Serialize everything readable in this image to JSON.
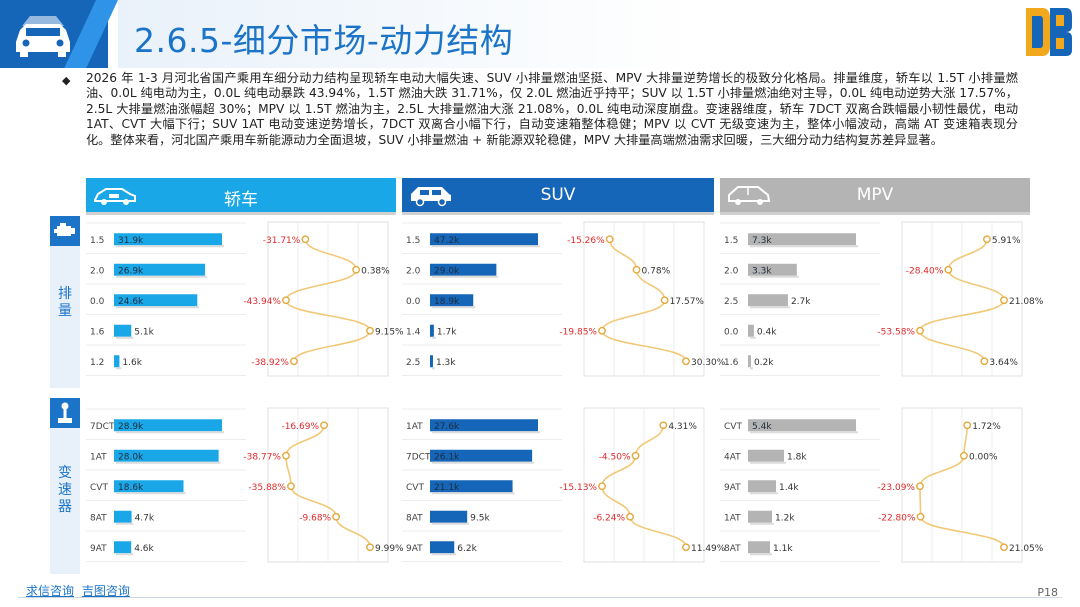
{
  "page": {
    "title": "2.6.5-细分市场-动力结构",
    "bullet": "◆",
    "summary": "2026 年 1-3 月河北省国产乘用车细分动力结构呈现轿车电动大幅失速、SUV 小排量燃油坚挺、MPV 大排量逆势增长的极致分化格局。排量维度，轿车以 1.5T 小排量燃油、0.0L 纯电动为主，0.0L 纯电动暴跌 43.94%，1.5T 燃油大跌 31.71%，仅 2.0L 燃油近乎持平；SUV 以 1.5T 小排量燃油绝对主导，0.0L 纯电动逆势大涨 17.57%，2.5L 大排量燃油涨幅超 30%；MPV 以 1.5T 燃油为主，2.5L 大排量燃油大涨 21.08%，0.0L 纯电动深度崩盘。变速器维度，轿车 7DCT 双离合跌幅最小韧性最优，电动 1AT、CVT 大幅下行；SUV 1AT 电动变速逆势增长，7DCT 双离合小幅下行，自动变速箱整体稳健；MPV 以 CVT 无级变速为主，整体小幅波动，高端 AT 变速箱表现分化。整体来看，河北国产乘用车新能源动力全面退坡，SUV 小排量燃油 + 新能源双轮稳健，MPV 大排量高端燃油需求回暖，三大细分动力结构复苏差异显著。",
    "side_labels": {
      "displacement": "排\n量",
      "transmission": "变\n速\n器"
    },
    "footer_links": [
      "求信咨询",
      "吉图咨询"
    ],
    "page_number": "P18"
  },
  "colors": {
    "sedan": "#1aa7e8",
    "suv": "#1565b8",
    "mpv": "#b4b4b4",
    "line": "#f2c878",
    "negative": "#e0292b",
    "accent": "#1b74c8"
  },
  "chart_data": [
    {
      "type": "bar",
      "segment": "轿车",
      "dimension": "排量",
      "categories": [
        "1.5",
        "2.0",
        "0.0",
        "1.6",
        "1.2"
      ],
      "labels": [
        "31.9k",
        "26.9k",
        "24.6k",
        "5.1k",
        "1.6k"
      ],
      "values": [
        31.9,
        26.9,
        24.6,
        5.1,
        1.6
      ],
      "growth": [
        -31.71,
        0.38,
        -43.94,
        9.15,
        -38.92
      ],
      "growth_labels": [
        "-31.71%",
        "0.38%",
        "-43.94%",
        "9.15%",
        "-38.92%"
      ]
    },
    {
      "type": "bar",
      "segment": "SUV",
      "dimension": "排量",
      "categories": [
        "1.5",
        "2.0",
        "0.0",
        "1.4",
        "2.5"
      ],
      "labels": [
        "47.2k",
        "29.0k",
        "18.9k",
        "1.7k",
        "1.3k"
      ],
      "values": [
        47.2,
        29.0,
        18.9,
        1.7,
        1.3
      ],
      "growth": [
        -15.26,
        0.78,
        17.57,
        -19.85,
        30.3
      ],
      "growth_labels": [
        "-15.26%",
        "0.78%",
        "17.57%",
        "-19.85%",
        "30.30%"
      ]
    },
    {
      "type": "bar",
      "segment": "MPV",
      "dimension": "排量",
      "categories": [
        "1.5",
        "2.0",
        "2.5",
        "0.0",
        "1.6"
      ],
      "labels": [
        "7.3k",
        "3.3k",
        "2.7k",
        "0.4k",
        "0.2k"
      ],
      "values": [
        7.3,
        3.3,
        2.7,
        0.4,
        0.2
      ],
      "growth": [
        5.91,
        -28.4,
        21.08,
        -53.58,
        3.64
      ],
      "growth_labels": [
        "5.91%",
        "-28.40%",
        "21.08%",
        "-53.58%",
        "3.64%"
      ]
    },
    {
      "type": "bar",
      "segment": "轿车",
      "dimension": "变速器",
      "categories": [
        "7DCT",
        "1AT",
        "CVT",
        "8AT",
        "9AT"
      ],
      "labels": [
        "28.9k",
        "28.0k",
        "18.6k",
        "4.7k",
        "4.6k"
      ],
      "values": [
        28.9,
        28.0,
        18.6,
        4.7,
        4.6
      ],
      "growth": [
        -16.69,
        -38.77,
        -35.88,
        -9.68,
        9.99
      ],
      "growth_labels": [
        "-16.69%",
        "-38.77%",
        "-35.88%",
        "-9.68%",
        "9.99%"
      ]
    },
    {
      "type": "bar",
      "segment": "SUV",
      "dimension": "变速器",
      "categories": [
        "1AT",
        "7DCT",
        "CVT",
        "8AT",
        "9AT"
      ],
      "labels": [
        "27.6k",
        "26.1k",
        "21.1k",
        "9.5k",
        "6.2k"
      ],
      "values": [
        27.6,
        26.1,
        21.1,
        9.5,
        6.2
      ],
      "growth": [
        4.31,
        -4.5,
        -15.13,
        -6.24,
        11.49
      ],
      "growth_labels": [
        "4.31%",
        "-4.50%",
        "-15.13%",
        "-6.24%",
        "11.49%"
      ]
    },
    {
      "type": "bar",
      "segment": "MPV",
      "dimension": "变速器",
      "categories": [
        "CVT",
        "4AT",
        "9AT",
        "1AT",
        "8AT"
      ],
      "labels": [
        "5.4k",
        "1.8k",
        "1.4k",
        "1.2k",
        "1.1k"
      ],
      "values": [
        5.4,
        1.8,
        1.4,
        1.2,
        1.1
      ],
      "growth": [
        1.72,
        0.0,
        -23.09,
        -22.8,
        21.05
      ],
      "growth_labels": [
        "1.72%",
        "0.00%",
        "-23.09%",
        "-22.80%",
        "21.05%"
      ]
    }
  ],
  "segments": [
    {
      "key": "sedan",
      "label": "轿车",
      "icon": "sedan-icon"
    },
    {
      "key": "suv",
      "label": "SUV",
      "icon": "suv-icon"
    },
    {
      "key": "mpv",
      "label": "MPV",
      "icon": "mpv-icon"
    }
  ]
}
